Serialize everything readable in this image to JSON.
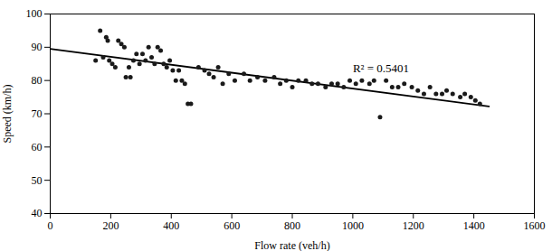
{
  "chart_data": {
    "type": "scatter",
    "x": [
      150,
      165,
      175,
      185,
      190,
      195,
      205,
      215,
      225,
      235,
      245,
      250,
      260,
      265,
      275,
      285,
      295,
      305,
      315,
      325,
      335,
      345,
      355,
      365,
      375,
      385,
      395,
      405,
      415,
      425,
      435,
      445,
      455,
      465,
      490,
      510,
      525,
      540,
      555,
      570,
      590,
      610,
      640,
      660,
      685,
      710,
      740,
      760,
      780,
      800,
      820,
      845,
      865,
      885,
      910,
      930,
      950,
      970,
      990,
      1010,
      1030,
      1055,
      1070,
      1090,
      1110,
      1130,
      1150,
      1170,
      1195,
      1215,
      1235,
      1255,
      1275,
      1295,
      1310,
      1330,
      1355,
      1370,
      1390,
      1405,
      1420
    ],
    "values": [
      86,
      95,
      87,
      93,
      92,
      86,
      85,
      84,
      92,
      91,
      90,
      81,
      84,
      81,
      86,
      88,
      85,
      88,
      86,
      90,
      87,
      85,
      90,
      89,
      85,
      84,
      86,
      83,
      80,
      83,
      80,
      79,
      73,
      73,
      84,
      83,
      82,
      81,
      84,
      79,
      82,
      80,
      82,
      80,
      81,
      80,
      81,
      79,
      80,
      78,
      80,
      80,
      79,
      79,
      78,
      79,
      79,
      78,
      80,
      79,
      80,
      79,
      80,
      69,
      80,
      78,
      78,
      79,
      78,
      77,
      76,
      78,
      76,
      76,
      77,
      76,
      75,
      76,
      75,
      74,
      73
    ],
    "color": "#1a1a1a",
    "marker": "circle",
    "trendline": {
      "x": [
        0,
        1450
      ],
      "values": [
        89.5,
        72.2
      ],
      "color": "#000000"
    },
    "annotations": [
      {
        "text": "R² = 0.5401",
        "x": 1000,
        "y": 83.5
      }
    ],
    "xlabel": "Flow rate (veh/h)",
    "ylabel": "Speed (km/h)",
    "xlim": [
      0,
      1600
    ],
    "ylim": [
      40,
      100
    ],
    "xticks": [
      0,
      200,
      400,
      600,
      800,
      1000,
      1200,
      1400,
      1600
    ],
    "yticks": [
      40,
      50,
      60,
      70,
      80,
      90,
      100
    ],
    "grid": false
  }
}
